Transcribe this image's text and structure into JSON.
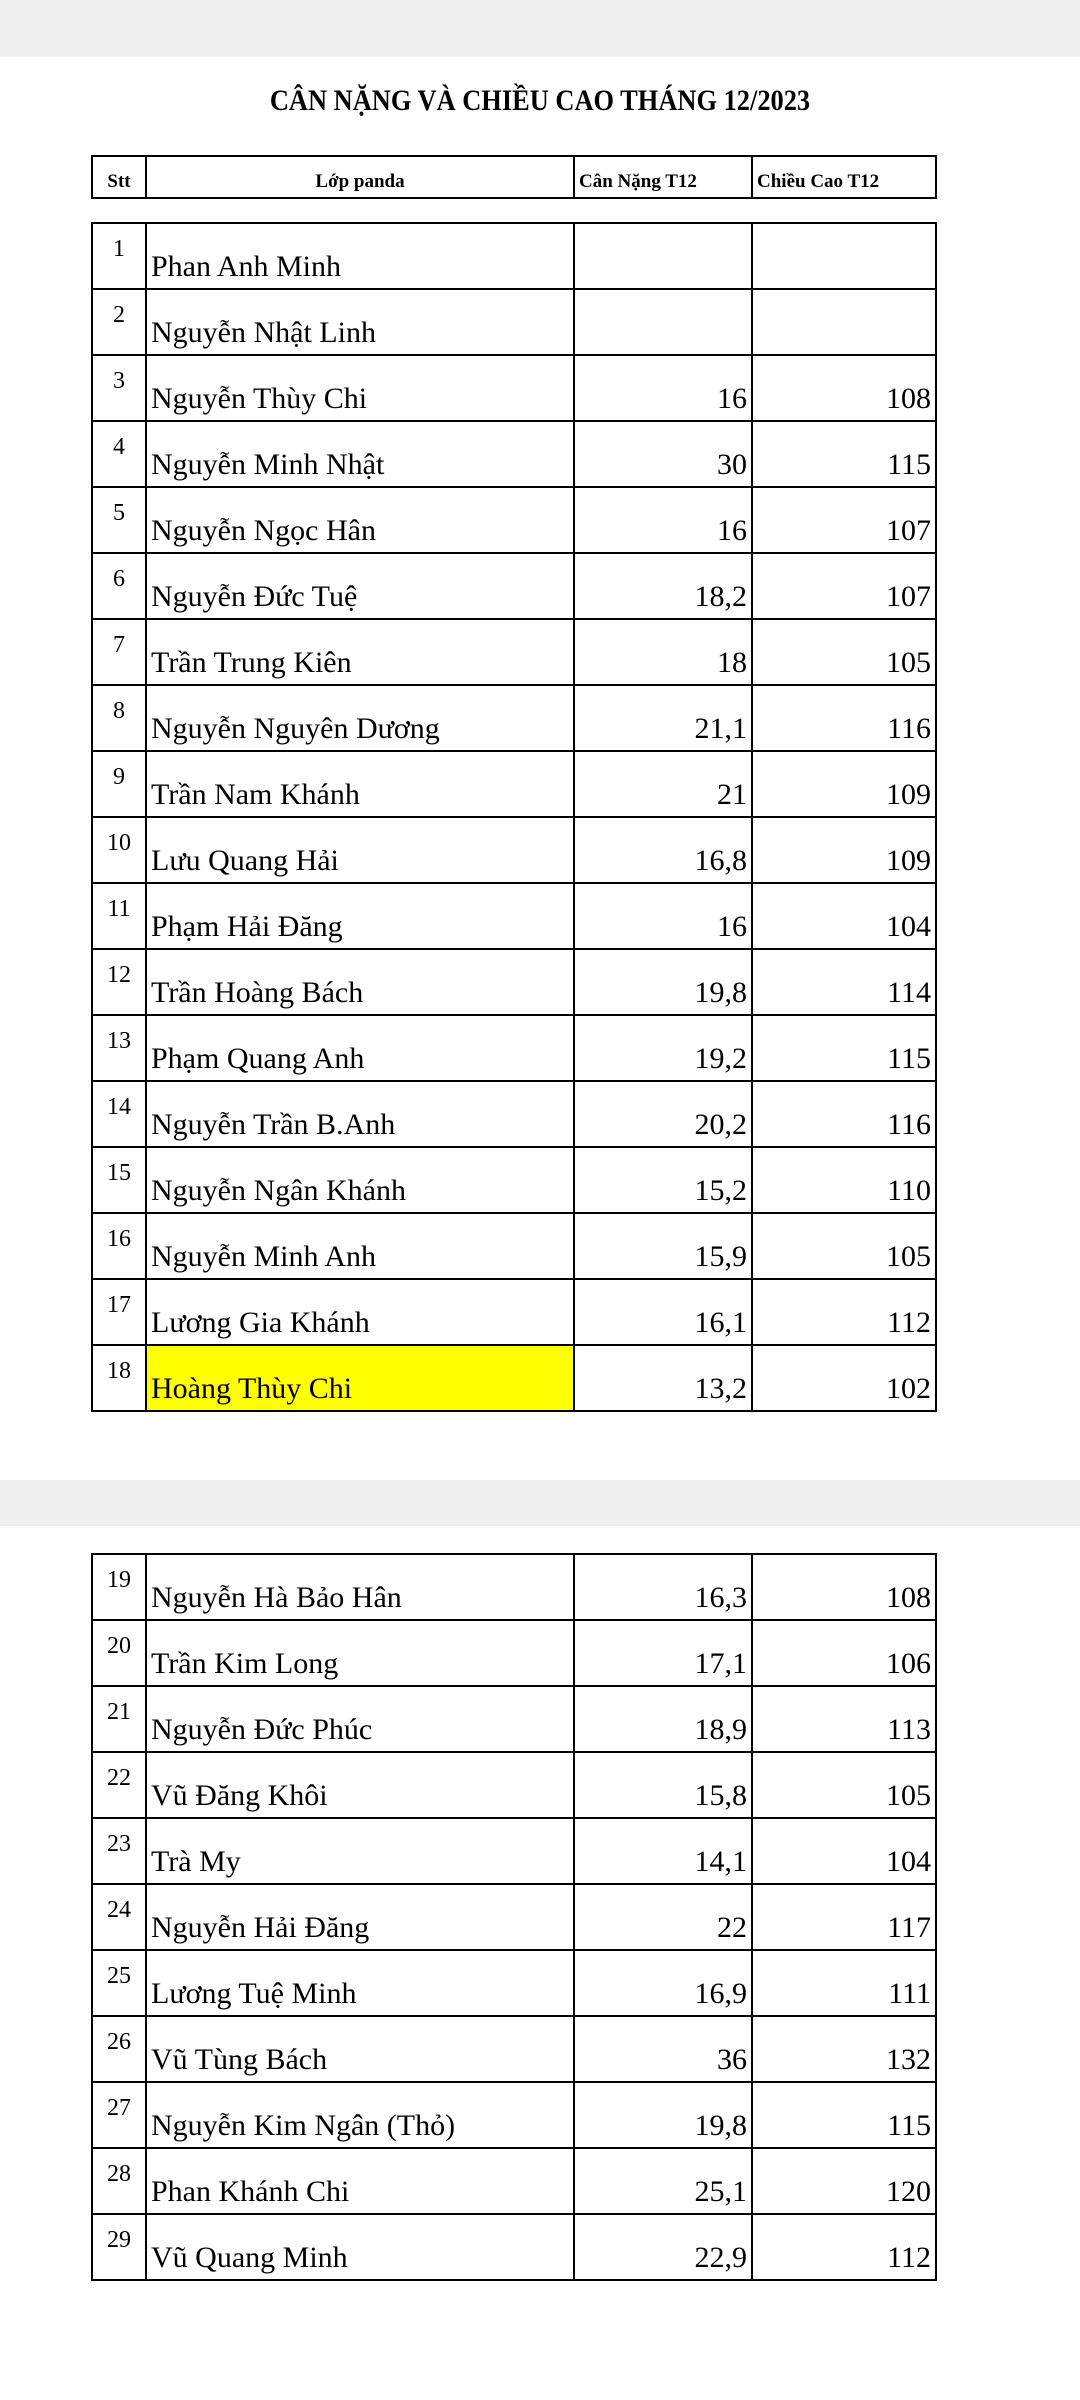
{
  "title": "CÂN NẶNG VÀ CHIỀU CAO  THÁNG 12/2023",
  "headers": {
    "stt": "Stt",
    "name": "Lớp panda",
    "weight": "Cân Nặng T12",
    "height": "Chiều Cao T12"
  },
  "highlight_color": "#ffff00",
  "page1": [
    {
      "stt": "1",
      "name": "Phan Anh Minh",
      "weight": "",
      "height": ""
    },
    {
      "stt": "2",
      "name": "Nguyễn Nhật Linh",
      "weight": "",
      "height": ""
    },
    {
      "stt": "3",
      "name": "Nguyễn Thùy Chi",
      "weight": "16",
      "height": "108"
    },
    {
      "stt": "4",
      "name": "Nguyễn Minh Nhật",
      "weight": "30",
      "height": "115"
    },
    {
      "stt": "5",
      "name": "Nguyễn Ngọc Hân",
      "weight": "16",
      "height": "107"
    },
    {
      "stt": "6",
      "name": "Nguyễn Đức Tuệ",
      "weight": "18,2",
      "height": "107"
    },
    {
      "stt": "7",
      "name": "Trần Trung Kiên",
      "weight": "18",
      "height": "105"
    },
    {
      "stt": "8",
      "name": "Nguyễn Nguyên Dương",
      "weight": "21,1",
      "height": "116"
    },
    {
      "stt": "9",
      "name": "Trần Nam Khánh",
      "weight": "21",
      "height": "109"
    },
    {
      "stt": "10",
      "name": "Lưu Quang Hải",
      "weight": "16,8",
      "height": "109"
    },
    {
      "stt": "11",
      "name": "Phạm Hải Đăng",
      "weight": "16",
      "height": "104"
    },
    {
      "stt": "12",
      "name": "Trần Hoàng Bách",
      "weight": "19,8",
      "height": "114"
    },
    {
      "stt": "13",
      "name": "Phạm Quang Anh",
      "weight": "19,2",
      "height": "115"
    },
    {
      "stt": "14",
      "name": "Nguyễn Trần B.Anh",
      "weight": "20,2",
      "height": "116"
    },
    {
      "stt": "15",
      "name": "Nguyễn Ngân Khánh",
      "weight": "15,2",
      "height": "110"
    },
    {
      "stt": "16",
      "name": "Nguyễn Minh Anh",
      "weight": "15,9",
      "height": "105"
    },
    {
      "stt": "17",
      "name": "Lương Gia Khánh",
      "weight": "16,1",
      "height": "112"
    },
    {
      "stt": "18",
      "name": "Hoàng Thùy Chi",
      "weight": "13,2",
      "height": "102",
      "highlight": true
    }
  ],
  "page2": [
    {
      "stt": "19",
      "name": "Nguyễn Hà Bảo Hân",
      "weight": "16,3",
      "height": "108"
    },
    {
      "stt": "20",
      "name": "Trần Kim Long",
      "weight": "17,1",
      "height": "106"
    },
    {
      "stt": "21",
      "name": "Nguyễn Đức Phúc",
      "weight": "18,9",
      "height": "113"
    },
    {
      "stt": "22",
      "name": "Vũ Đăng Khôi",
      "weight": "15,8",
      "height": "105"
    },
    {
      "stt": "23",
      "name": "Trà My",
      "weight": "14,1",
      "height": "104"
    },
    {
      "stt": "24",
      "name": "Nguyễn Hải Đăng",
      "weight": "22",
      "height": "117"
    },
    {
      "stt": "25",
      "name": "Lương Tuệ Minh",
      "weight": "16,9",
      "height": "111"
    },
    {
      "stt": "26",
      "name": "Vũ Tùng Bách",
      "weight": "36",
      "height": "132"
    },
    {
      "stt": "27",
      "name": "Nguyễn Kim Ngân  (Thỏ)",
      "weight": "19,8",
      "height": "115"
    },
    {
      "stt": "28",
      "name": "Phan Khánh Chi",
      "weight": "25,1",
      "height": "120"
    },
    {
      "stt": "29",
      "name": "Vũ Quang Minh",
      "weight": "22,9",
      "height": "112"
    }
  ]
}
